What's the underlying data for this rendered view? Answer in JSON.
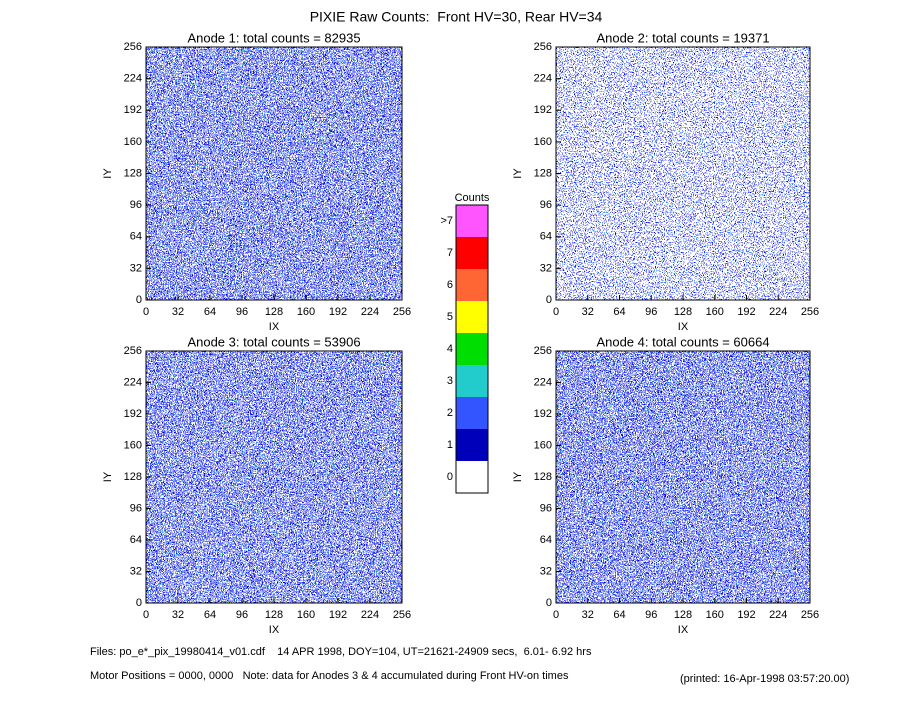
{
  "title": "PIXIE Raw Counts:  Front HV=30, Rear HV=34",
  "chart_data": [
    {
      "type": "heatmap",
      "title": "Anode 1: total counts = 82935",
      "xlabel": "IX",
      "ylabel": "IY",
      "xlim": [
        0,
        256
      ],
      "ylim": [
        0,
        256
      ],
      "xticks": [
        0,
        32,
        64,
        96,
        128,
        160,
        192,
        224,
        256
      ],
      "yticks": [
        0,
        32,
        64,
        96,
        128,
        160,
        192,
        224,
        256
      ]
    },
    {
      "type": "heatmap",
      "title": "Anode 2: total counts = 19371",
      "xlabel": "IX",
      "ylabel": "IY",
      "xlim": [
        0,
        256
      ],
      "ylim": [
        0,
        256
      ],
      "xticks": [
        0,
        32,
        64,
        96,
        128,
        160,
        192,
        224,
        256
      ],
      "yticks": [
        0,
        32,
        64,
        96,
        128,
        160,
        192,
        224,
        256
      ]
    },
    {
      "type": "heatmap",
      "title": "Anode 3: total counts = 53906",
      "xlabel": "IX",
      "ylabel": "IY",
      "xlim": [
        0,
        256
      ],
      "ylim": [
        0,
        256
      ],
      "xticks": [
        0,
        32,
        64,
        96,
        128,
        160,
        192,
        224,
        256
      ],
      "yticks": [
        0,
        32,
        64,
        96,
        128,
        160,
        192,
        224,
        256
      ]
    },
    {
      "type": "heatmap",
      "title": "Anode 4: total counts = 60664",
      "xlabel": "IX",
      "ylabel": "IY",
      "xlim": [
        0,
        256
      ],
      "ylim": [
        0,
        256
      ],
      "xticks": [
        0,
        32,
        64,
        96,
        128,
        160,
        192,
        224,
        256
      ],
      "yticks": [
        0,
        32,
        64,
        96,
        128,
        160,
        192,
        224,
        256
      ]
    }
  ],
  "colorbar": {
    "title": "Counts",
    "labels": [
      ">7",
      7,
      6,
      5,
      4,
      3,
      2,
      1,
      0
    ],
    "colors": [
      "#ff55ff",
      "#ff0000",
      "#ff6633",
      "#ffff00",
      "#00dd00",
      "#22cccc",
      "#3355ff",
      "#0000bb",
      "#ffffff"
    ]
  },
  "footer": {
    "files": "Files: po_e*_pix_19980414_v01.cdf    14 APR 1998, DOY=104, UT=21621-24909 secs,  6.01- 6.92 hrs",
    "motor": "Motor Positions = 0000, 0000   Note: data for Anodes 3 & 4 accumulated during Front HV-on times",
    "printed": "(printed: 16-Apr-1998 03:57:20.00)"
  }
}
